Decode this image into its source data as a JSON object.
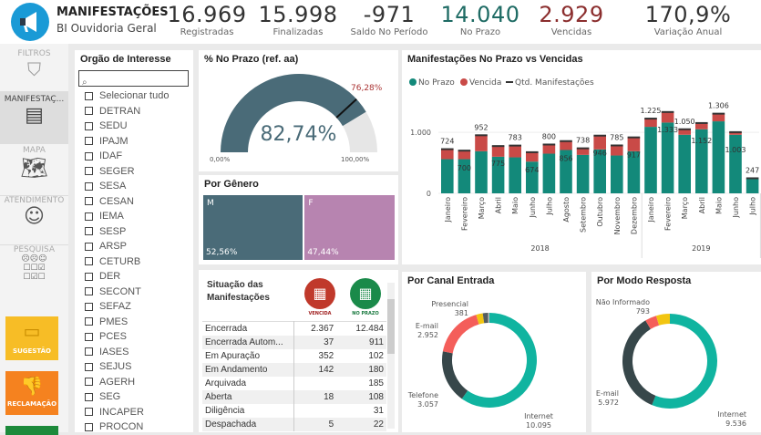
{
  "header": {
    "title": "MANIFESTAÇÕES",
    "subtitle": "BI Ouvidoria Geral",
    "kpis": [
      {
        "value": "16.969",
        "label": "Registradas",
        "color": "#333333"
      },
      {
        "value": "15.998",
        "label": "Finalizadas",
        "color": "#333333"
      },
      {
        "value": "-971",
        "label": "Saldo No Período",
        "color": "#333333"
      },
      {
        "value": "14.040",
        "label": "No Prazo",
        "color": "#1e6b64"
      },
      {
        "value": "2.929",
        "label": "Vencidas",
        "color": "#8b2e2e"
      },
      {
        "value": "170,9%",
        "label": "Variação Anual",
        "color": "#333333"
      }
    ]
  },
  "sidebar": {
    "items": [
      "FILTROS",
      "MANIFESTAÇ...",
      "MAPA",
      "ATENDIMENTO",
      "PESQUISA"
    ],
    "buttons": [
      "SUGESTÃO",
      "RECLAMAÇÃO"
    ]
  },
  "filter": {
    "title": "Orgão de Interesse",
    "search_placeholder": "",
    "options": [
      "Selecionar tudo",
      "DETRAN",
      "SEDU",
      "IPAJM",
      "IDAF",
      "SEGER",
      "SESA",
      "CESAN",
      "IEMA",
      "SESP",
      "ARSP",
      "CETURB",
      "DER",
      "SECONT",
      "SEFAZ",
      "PMES",
      "PCES",
      "IASES",
      "SEJUS",
      "AGERH",
      "SEG",
      "INCAPER",
      "PROCON"
    ]
  },
  "gauge": {
    "title": "% No Prazo (ref. aa)",
    "value": 82.74,
    "value_label": "82,74%",
    "target": 76.28,
    "target_label": "76,28%",
    "min_label": "0,00%",
    "max_label": "100,00%"
  },
  "gender": {
    "title": "Por Gênero",
    "items": [
      {
        "label": "M",
        "pct": 52.56,
        "pct_label": "52,56%",
        "color": "#4a6b78"
      },
      {
        "label": "F",
        "pct": 47.44,
        "pct_label": "47,44%",
        "color": "#b784b0"
      }
    ]
  },
  "situacao": {
    "title1": "Situação das",
    "title2": "Manifestações",
    "col1": "VENCIDA",
    "col2": "NO PRAZO",
    "rows": [
      [
        "Encerrada",
        "2.367",
        "12.484"
      ],
      [
        "Encerrada Autom...",
        "37",
        "911"
      ],
      [
        "Em Apuração",
        "352",
        "102"
      ],
      [
        "Em Andamento",
        "142",
        "180"
      ],
      [
        "Arquivada",
        "",
        "185"
      ],
      [
        "Aberta",
        "18",
        "108"
      ],
      [
        "Diligência",
        "",
        "31"
      ],
      [
        "Despachada",
        "5",
        "22"
      ]
    ]
  },
  "chart_data": [
    {
      "type": "bar",
      "title": "Manifestações No Prazo vs Vencidas",
      "legend": [
        "No Prazo",
        "Vencida",
        "Qtd. Manifestações"
      ],
      "legend_position": "top-left",
      "categories": [
        "Janeiro",
        "Fevereiro",
        "Março",
        "Abril",
        "Maio",
        "Junho",
        "Julho",
        "Agosto",
        "Setembro",
        "Outubro",
        "Novembro",
        "Dezembro",
        "Janeiro",
        "Fevereiro",
        "Março",
        "Abril",
        "Maio",
        "Junho",
        "Julho"
      ],
      "groups": [
        {
          "label": "2018",
          "count": 12
        },
        {
          "label": "2019",
          "count": 7
        }
      ],
      "series": [
        {
          "name": "No Prazo",
          "color": "#13897a",
          "values": [
            560,
            560,
            690,
            600,
            590,
            520,
            650,
            710,
            630,
            720,
            620,
            690,
            1090,
            1160,
            960,
            1050,
            1180,
            960,
            240
          ]
        },
        {
          "name": "Vencida",
          "color": "#c94a47",
          "values": [
            164,
            140,
            262,
            175,
            193,
            154,
            150,
            146,
            108,
            226,
            165,
            227,
            135,
            173,
            90,
            102,
            126,
            43,
            7
          ]
        }
      ],
      "totals": [
        724,
        700,
        952,
        775,
        783,
        674,
        800,
        856,
        738,
        946,
        785,
        917,
        1225,
        1333,
        1050,
        1152,
        1306,
        1003,
        247
      ],
      "total_labels": [
        "724",
        "700",
        "952",
        "775",
        "783",
        "674",
        "800",
        "856",
        "738",
        "946",
        "785",
        "917",
        "1.225",
        "1.333",
        "1.050",
        "1.152",
        "1.306",
        "1.003",
        "247"
      ],
      "yticks": [
        {
          "v": 0,
          "l": "0"
        },
        {
          "v": 1000,
          "l": "1.000"
        }
      ],
      "ylim": [
        0,
        1450
      ]
    },
    {
      "type": "pie",
      "title": "Por Canal Entrada",
      "slices": [
        {
          "label": "Internet",
          "value": 10095,
          "vl": "10.095",
          "color": "#10b4a0"
        },
        {
          "label": "Telefone",
          "value": 3057,
          "vl": "3.057",
          "color": "#37474a"
        },
        {
          "label": "E-mail",
          "value": 2952,
          "vl": "2.952",
          "color": "#f45e5a"
        },
        {
          "label": "Presencial",
          "value": 381,
          "vl": "381",
          "color": "#f2c511"
        },
        {
          "label": "",
          "value": 300,
          "vl": "",
          "color": "#555d60"
        },
        {
          "label": "",
          "value": 80,
          "vl": "",
          "color": "#bbbbbb"
        }
      ]
    },
    {
      "type": "pie",
      "title": "Por Modo Resposta",
      "slices": [
        {
          "label": "Internet",
          "value": 9536,
          "vl": "9.536",
          "color": "#10b4a0"
        },
        {
          "label": "E-mail",
          "value": 5972,
          "vl": "5.972",
          "color": "#37474a"
        },
        {
          "label": "",
          "value": 668,
          "vl": "",
          "color": "#f45e5a"
        },
        {
          "label": "Não Informado",
          "value": 793,
          "vl": "793",
          "color": "#f2c511"
        }
      ]
    }
  ]
}
